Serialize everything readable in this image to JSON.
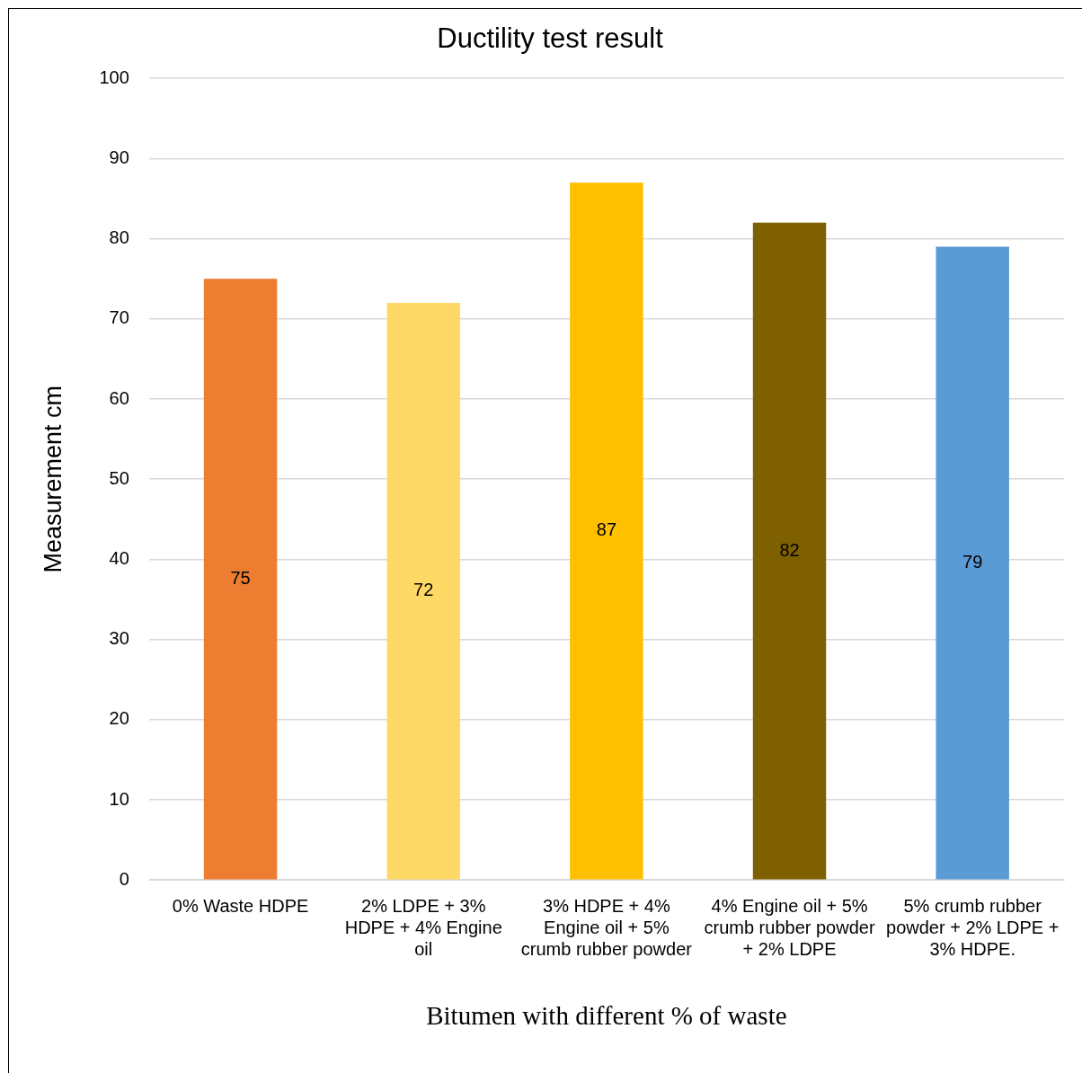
{
  "chart_data": {
    "type": "bar",
    "title": "Ductility test result",
    "xlabel": "Bitumen with different % of waste",
    "ylabel": "Measurement cm",
    "categories": [
      "0% Waste HDPE",
      "2% LDPE + 3% HDPE + 4% Engine oil",
      "3% HDPE + 4% Engine oil + 5% crumb rubber powder",
      "4% Engine oil + 5% crumb rubber powder + 2% LDPE",
      "5% crumb rubber powder + 2% LDPE + 3% HDPE."
    ],
    "values": [
      75,
      72,
      87,
      82,
      79
    ],
    "colors": [
      "#ed7d31",
      "#ffd966",
      "#ffc000",
      "#7f6000",
      "#5b9bd5"
    ],
    "ylim": [
      0,
      100
    ],
    "yticks": [
      0,
      10,
      20,
      30,
      40,
      50,
      60,
      70,
      80,
      90,
      100
    ],
    "grid": "y",
    "data_labels": true,
    "legend": false
  }
}
